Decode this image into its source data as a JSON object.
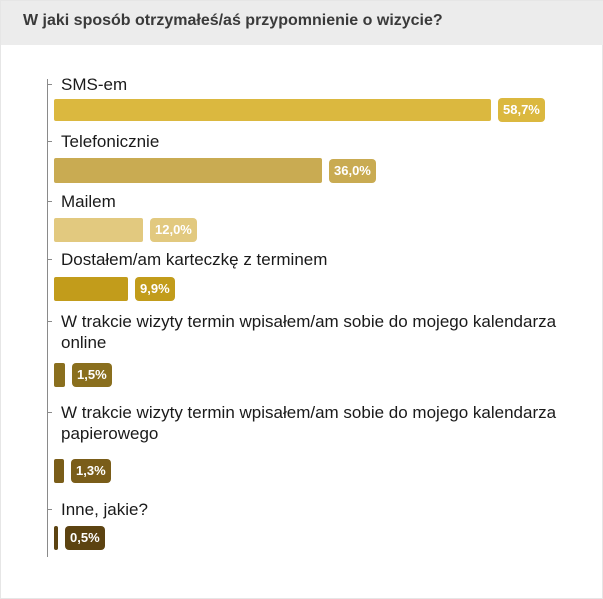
{
  "header": {
    "title": "W jaki sposób otrzymałeś/aś przypomnienie o wizycie?"
  },
  "chart_data": {
    "type": "bar",
    "orientation": "horizontal",
    "title": "W jaki sposób otrzymałeś/aś przypomnienie o wizycie?",
    "unit": "%",
    "categories": [
      "SMS-em",
      "Telefonicznie",
      "Mailem",
      "Dostałem/am karteczkę z terminem",
      "W trakcie wizyty termin wpisałem/am sobie do mojego kalendarza online",
      "W trakcie wizyty termin wpisałem/am sobie do mojego kalendarza papierowego",
      "Inne, jakie?"
    ],
    "values": [
      58.7,
      36.0,
      12.0,
      9.9,
      1.5,
      1.3,
      0.5
    ],
    "value_labels": [
      "58,7%",
      "36,0%",
      "12,0%",
      "9,9%",
      "1,5%",
      "1,3%",
      "0,5%"
    ],
    "colors": [
      "#dbb83f",
      "#c9ab52",
      "#e2c97f",
      "#c29c1b",
      "#8a6f1e",
      "#7a5d19",
      "#5c4311"
    ],
    "xlim": [
      0,
      58.7
    ],
    "grid": false,
    "legend": "none"
  }
}
